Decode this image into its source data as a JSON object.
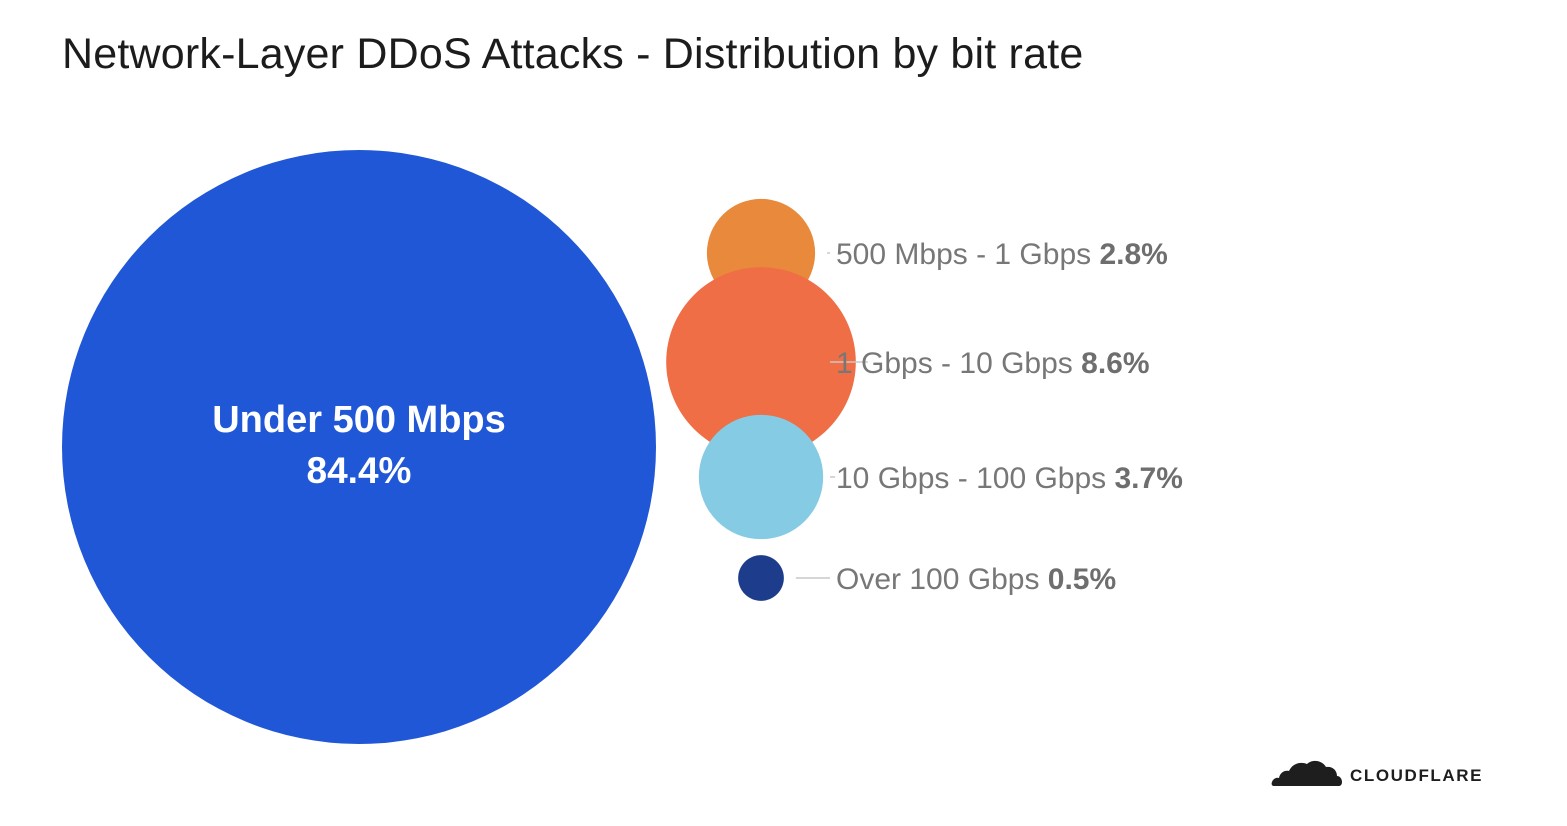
{
  "title": "Network-Layer DDoS Attacks - Distribution by bit rate",
  "brand": {
    "name": "CLOUDFLARE",
    "logo_icon": "cloud-icon"
  },
  "chart_data": {
    "type": "bubble",
    "title": "Network-Layer DDoS Attacks - Distribution by bit rate",
    "unit": "%",
    "categories": [
      "Under 500 Mbps",
      "500 Mbps - 1 Gbps",
      "1 Gbps - 10 Gbps",
      "10 Gbps - 100 Gbps",
      "Over 100 Gbps"
    ],
    "values": [
      84.4,
      2.8,
      8.6,
      3.7,
      0.5
    ],
    "labels": [
      "84.4%",
      "2.8%",
      "8.6%",
      "3.7%",
      "0.5%"
    ],
    "colors": [
      "#1f57d6",
      "#e8893b",
      "#ef6e45",
      "#86cbe4",
      "#1d3d8c"
    ],
    "label_placement": "inside for the largest category, right-side leader-line labels for the others"
  }
}
